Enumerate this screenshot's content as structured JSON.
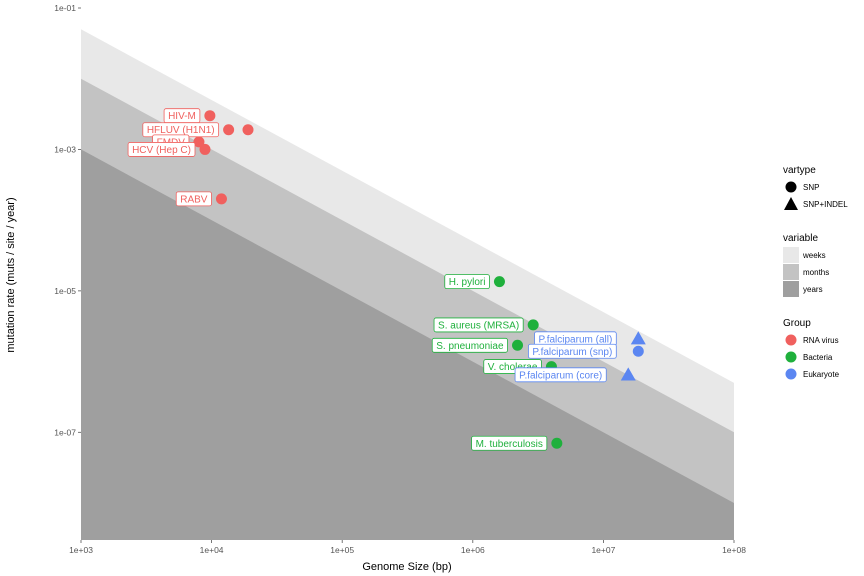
{
  "chart_data": {
    "type": "scatter",
    "xscale": "log10",
    "yscale": "log10",
    "xlabel": "Genome Size (bp)",
    "ylabel": "mutation rate (muts / site / year)",
    "xlim": [
      1000,
      100000000
    ],
    "ylim": [
      3e-09,
      0.1
    ],
    "xticks": [
      1000,
      10000,
      100000,
      1000000,
      10000000,
      100000000
    ],
    "xtick_labels": [
      "1e+03",
      "1e+04",
      "1e+05",
      "1e+06",
      "1e+07",
      "1e+08"
    ],
    "yticks": [
      0.1,
      0.001,
      1e-05,
      1e-07
    ],
    "ytick_labels": [
      "1e-01",
      "1e-03",
      "1e-05",
      "1e-07"
    ],
    "grid": false,
    "bands": [
      {
        "name": "weeks",
        "color": "#e8e8e8",
        "upper_at_xmin": 0.05,
        "upper_at_xmax": 5e-07
      },
      {
        "name": "months",
        "color": "#c3c3c3",
        "upper_at_xmin": 0.01,
        "upper_at_xmax": 1e-07
      },
      {
        "name": "years",
        "color": "#9f9f9f",
        "upper_at_xmin": 0.001,
        "upper_at_xmax": 1e-08
      }
    ],
    "groups": [
      {
        "name": "RNA virus",
        "color": "#f0605e"
      },
      {
        "name": "Bacteria",
        "color": "#1fb03c"
      },
      {
        "name": "Eukaryote",
        "color": "#5b86f1"
      }
    ],
    "points": [
      {
        "label": "HIV-M",
        "x": 9700,
        "y": 0.003,
        "group": "RNA virus",
        "vartype": "SNP"
      },
      {
        "label": "HFLUV (H1N1)",
        "x": 13500,
        "y": 0.0019,
        "group": "RNA virus",
        "vartype": "SNP"
      },
      {
        "label": "",
        "x": 19000,
        "y": 0.0019,
        "group": "RNA virus",
        "vartype": "SNP"
      },
      {
        "label": "FMDV",
        "x": 8000,
        "y": 0.00128,
        "group": "RNA virus",
        "vartype": "SNP"
      },
      {
        "label": "HCV (Hep C)",
        "x": 8900,
        "y": 0.001,
        "group": "RNA virus",
        "vartype": "SNP"
      },
      {
        "label": "RABV",
        "x": 11900,
        "y": 0.0002,
        "group": "RNA virus",
        "vartype": "SNP"
      },
      {
        "label": "H. pylori",
        "x": 1600000,
        "y": 1.35e-05,
        "group": "Bacteria",
        "vartype": "SNP"
      },
      {
        "label": "S. aureus (MRSA)",
        "x": 2900000,
        "y": 3.3e-06,
        "group": "Bacteria",
        "vartype": "SNP"
      },
      {
        "label": "S. pneumoniae",
        "x": 2200000,
        "y": 1.7e-06,
        "group": "Bacteria",
        "vartype": "SNP"
      },
      {
        "label": "V. cholerae",
        "x": 4000000,
        "y": 8.5e-07,
        "group": "Bacteria",
        "vartype": "SNP"
      },
      {
        "label": "M. tuberculosis",
        "x": 4400000,
        "y": 7e-08,
        "group": "Bacteria",
        "vartype": "SNP"
      },
      {
        "label": "P.falciparum (all)",
        "x": 18500000,
        "y": 2.1e-06,
        "group": "Eukaryote",
        "vartype": "SNP+INDEL"
      },
      {
        "label": "P.falciparum (snp)",
        "x": 18500000,
        "y": 1.4e-06,
        "group": "Eukaryote",
        "vartype": "SNP"
      },
      {
        "label": "P.falciparum (core)",
        "x": 15500000,
        "y": 6.5e-07,
        "group": "Eukaryote",
        "vartype": "SNP+INDEL"
      }
    ],
    "legend": {
      "placement": "right",
      "sections": [
        {
          "title": "vartype",
          "items": [
            "SNP",
            "SNP+INDEL"
          ]
        },
        {
          "title": "variable",
          "items": [
            "weeks",
            "months",
            "years"
          ]
        },
        {
          "title": "Group",
          "items": [
            "RNA virus",
            "Bacteria",
            "Eukaryote"
          ]
        }
      ]
    }
  }
}
